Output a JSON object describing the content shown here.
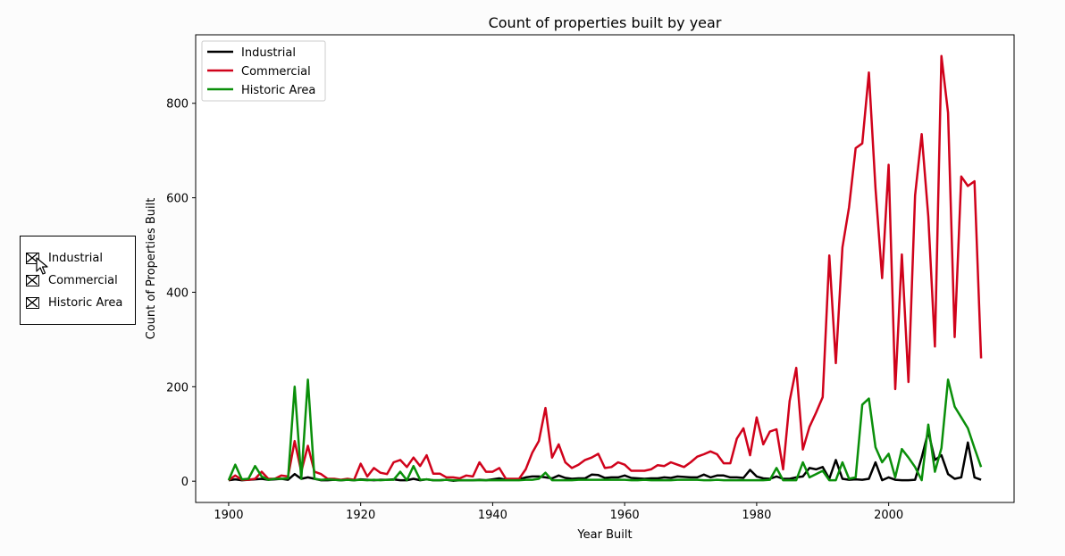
{
  "check_buttons": [
    {
      "label": "Industrial",
      "checked": true
    },
    {
      "label": "Commercial",
      "checked": true
    },
    {
      "label": "Historic Area",
      "checked": true
    }
  ],
  "chart_data": {
    "type": "line",
    "title": "Count of properties built by year",
    "xlabel": "Year Built",
    "ylabel": "Count of Properties Built",
    "xlim": [
      1895,
      2019
    ],
    "ylim": [
      -45,
      945
    ],
    "xticks": [
      1900,
      1920,
      1940,
      1960,
      1980,
      2000
    ],
    "yticks": [
      0,
      200,
      400,
      600,
      800
    ],
    "legend_position": "top-left",
    "grid": false,
    "x": [
      1900,
      1901,
      1902,
      1903,
      1904,
      1905,
      1906,
      1907,
      1908,
      1909,
      1910,
      1911,
      1912,
      1913,
      1914,
      1915,
      1916,
      1917,
      1918,
      1919,
      1920,
      1921,
      1922,
      1923,
      1924,
      1925,
      1926,
      1927,
      1928,
      1929,
      1930,
      1931,
      1932,
      1933,
      1934,
      1935,
      1936,
      1937,
      1938,
      1939,
      1940,
      1941,
      1942,
      1943,
      1944,
      1945,
      1946,
      1947,
      1948,
      1949,
      1950,
      1951,
      1952,
      1953,
      1954,
      1955,
      1956,
      1957,
      1958,
      1959,
      1960,
      1961,
      1962,
      1963,
      1964,
      1965,
      1966,
      1967,
      1968,
      1969,
      1970,
      1971,
      1972,
      1973,
      1974,
      1975,
      1976,
      1977,
      1978,
      1979,
      1980,
      1981,
      1982,
      1983,
      1984,
      1985,
      1986,
      1987,
      1988,
      1989,
      1990,
      1991,
      1992,
      1993,
      1994,
      1995,
      1996,
      1997,
      1998,
      1999,
      2000,
      2001,
      2002,
      2003,
      2004,
      2005,
      2006,
      2007,
      2008,
      2009,
      2010,
      2011,
      2012,
      2013,
      2014
    ],
    "series": [
      {
        "name": "Industrial",
        "color": "#000000",
        "values": [
          2,
          4,
          2,
          3,
          4,
          5,
          3,
          4,
          5,
          3,
          15,
          5,
          8,
          5,
          2,
          2,
          3,
          2,
          3,
          2,
          4,
          3,
          2,
          3,
          3,
          4,
          2,
          2,
          5,
          2,
          4,
          2,
          2,
          3,
          1,
          2,
          2,
          2,
          3,
          2,
          4,
          6,
          3,
          4,
          4,
          8,
          10,
          10,
          8,
          6,
          12,
          7,
          5,
          6,
          6,
          14,
          13,
          7,
          8,
          8,
          12,
          7,
          6,
          5,
          6,
          6,
          8,
          7,
          10,
          9,
          8,
          8,
          14,
          8,
          12,
          12,
          8,
          8,
          7,
          24,
          10,
          6,
          5,
          10,
          5,
          5,
          8,
          10,
          28,
          25,
          30,
          5,
          45,
          5,
          3,
          4,
          3,
          5,
          40,
          2,
          8,
          3,
          2,
          2,
          3,
          50,
          105,
          45,
          55,
          15,
          5,
          8,
          82,
          8,
          3
        ]
      },
      {
        "name": "Commercial",
        "color": "#d0021b",
        "values": [
          2,
          12,
          3,
          3,
          5,
          20,
          5,
          5,
          12,
          10,
          85,
          20,
          75,
          20,
          15,
          5,
          5,
          3,
          5,
          3,
          37,
          10,
          28,
          18,
          15,
          40,
          45,
          30,
          50,
          32,
          55,
          16,
          16,
          8,
          8,
          6,
          12,
          10,
          40,
          20,
          20,
          28,
          5,
          5,
          5,
          25,
          60,
          85,
          155,
          50,
          78,
          40,
          28,
          35,
          45,
          50,
          58,
          28,
          30,
          40,
          35,
          22,
          22,
          22,
          25,
          34,
          32,
          40,
          35,
          30,
          40,
          52,
          57,
          63,
          57,
          38,
          38,
          90,
          112,
          55,
          135,
          78,
          105,
          110,
          25,
          170,
          240,
          67,
          115,
          145,
          178,
          478,
          250,
          495,
          580,
          705,
          715,
          865,
          620,
          430,
          670,
          195,
          480,
          210,
          605,
          735,
          560,
          285,
          900,
          780,
          305,
          645,
          625,
          635,
          260
        ]
      },
      {
        "name": "Historic Area",
        "color": "#0a8f0a",
        "values": [
          2,
          35,
          4,
          5,
          32,
          10,
          3,
          5,
          5,
          6,
          200,
          5,
          215,
          5,
          3,
          4,
          3,
          2,
          3,
          2,
          3,
          2,
          3,
          2,
          3,
          3,
          20,
          2,
          32,
          3,
          4,
          2,
          2,
          3,
          2,
          2,
          2,
          2,
          2,
          2,
          2,
          2,
          2,
          2,
          2,
          3,
          3,
          5,
          18,
          2,
          2,
          2,
          2,
          3,
          3,
          3,
          3,
          3,
          3,
          3,
          3,
          2,
          2,
          3,
          2,
          2,
          2,
          2,
          3,
          3,
          3,
          3,
          2,
          2,
          3,
          2,
          2,
          2,
          2,
          2,
          2,
          2,
          3,
          28,
          2,
          2,
          2,
          40,
          8,
          15,
          22,
          2,
          2,
          40,
          5,
          8,
          162,
          175,
          72,
          40,
          58,
          8,
          68,
          50,
          30,
          2,
          120,
          20,
          70,
          215,
          158,
          135,
          112,
          70,
          30
        ]
      }
    ]
  }
}
